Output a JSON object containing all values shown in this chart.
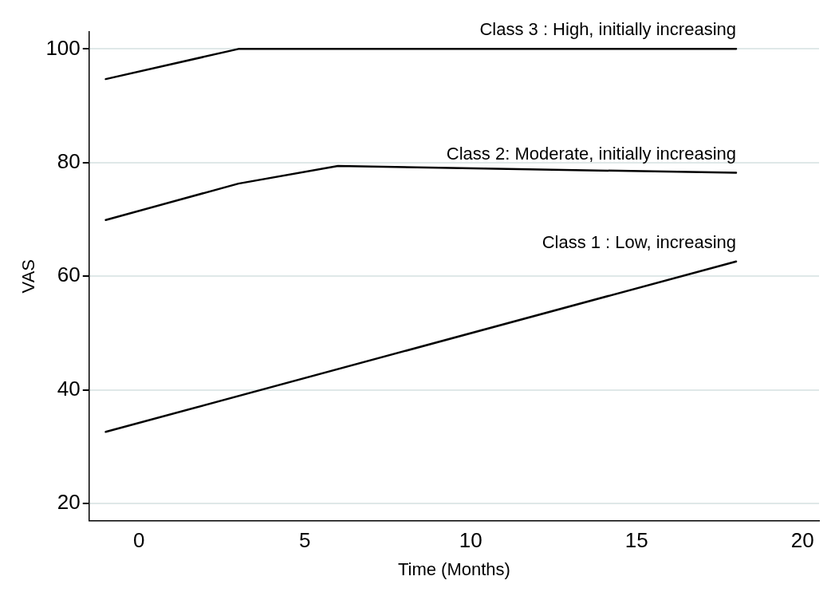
{
  "chart_data": {
    "type": "line",
    "xlabel": "Time (Months)",
    "ylabel": "VAS",
    "xlim": [
      -1.5,
      20.5
    ],
    "xticks": [
      0,
      5,
      10,
      15,
      20
    ],
    "ylim": [
      17,
      103
    ],
    "yticks": [
      20,
      40,
      60,
      80,
      100
    ],
    "grid": "y",
    "legend": false,
    "marker": "none",
    "line_style": "solid",
    "series": [
      {
        "name": "Class 1 : Low, increasing",
        "color": "#000000",
        "x": [
          -1,
          18
        ],
        "values": [
          32.6,
          62.6
        ]
      },
      {
        "name": "Class 2: Moderate, initially increasing",
        "color": "#000000",
        "x": [
          -1,
          3,
          6,
          18
        ],
        "values": [
          69.9,
          76.3,
          79.4,
          78.2
        ]
      },
      {
        "name": "Class 3 : High, initially increasing",
        "color": "#000000",
        "x": [
          -1,
          3,
          18
        ],
        "values": [
          94.7,
          100,
          100
        ]
      }
    ]
  }
}
